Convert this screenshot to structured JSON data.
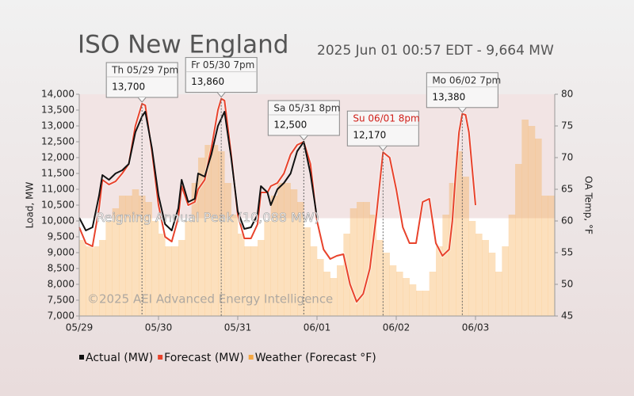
{
  "chart_data": {
    "type": "line",
    "title": "ISO New England",
    "subtitle": "2025 Jun 01 00:57 EDT - 9,664 MW",
    "y_label": "Load, MW",
    "y2_label": "OA Temp, °F",
    "watermark": "©2025 AEI Advanced Energy Intelligence",
    "xlim": [
      0,
      144
    ],
    "xticks": [
      {
        "value": 0,
        "label": "05/29"
      },
      {
        "value": 24,
        "label": "05/30"
      },
      {
        "value": 48,
        "label": "05/31"
      },
      {
        "value": 72,
        "label": "06/01"
      },
      {
        "value": 96,
        "label": "06/02"
      },
      {
        "value": 120,
        "label": "06/03"
      }
    ],
    "ylim": [
      7000,
      14000
    ],
    "yticks": [
      {
        "value": 7000,
        "label": "7,000"
      },
      {
        "value": 7500,
        "label": "7,500"
      },
      {
        "value": 8000,
        "label": "8,000"
      },
      {
        "value": 8500,
        "label": "8,500"
      },
      {
        "value": 9000,
        "label": "9,000"
      },
      {
        "value": 9500,
        "label": "9,500"
      },
      {
        "value": 10000,
        "label": "10,000"
      },
      {
        "value": 10500,
        "label": "10,500"
      },
      {
        "value": 11000,
        "label": "11,000"
      },
      {
        "value": 11500,
        "label": "11,500"
      },
      {
        "value": 12000,
        "label": "12,000"
      },
      {
        "value": 12500,
        "label": "12,500"
      },
      {
        "value": 13000,
        "label": "13,000"
      },
      {
        "value": 13500,
        "label": "13,500"
      },
      {
        "value": 14000,
        "label": "14,000"
      }
    ],
    "y2lim": [
      45,
      80
    ],
    "y2ticks": [
      45,
      50,
      55,
      60,
      65,
      70,
      75,
      80
    ],
    "annual_peak": {
      "value": 10088,
      "label": "Reigning Annual Peak (10,088 MW)"
    },
    "series": [
      {
        "name": "Actual (MW)",
        "color": "#111111",
        "x": [
          0,
          2,
          4,
          6,
          7,
          9,
          11,
          13,
          15,
          17,
          19,
          20,
          22,
          24,
          26,
          28,
          30,
          31,
          33,
          35,
          36,
          38,
          40,
          42,
          44,
          46,
          48,
          50,
          52,
          54,
          55,
          57,
          58,
          60,
          62,
          64,
          66,
          68,
          70,
          72
        ],
        "values": [
          10100,
          9700,
          9800,
          10800,
          11450,
          11300,
          11500,
          11600,
          11800,
          12800,
          13300,
          13450,
          12300,
          10800,
          9900,
          9700,
          10400,
          11300,
          10600,
          10700,
          11500,
          11400,
          12100,
          13000,
          13450,
          12000,
          10300,
          9750,
          9800,
          10200,
          11100,
          10900,
          10500,
          11000,
          11200,
          11500,
          12200,
          12500,
          11500,
          10100
        ]
      },
      {
        "name": "Forecast (MW)",
        "color": "#e8432c",
        "x": [
          0,
          2,
          4,
          6,
          7,
          9,
          11,
          13,
          15,
          17,
          19,
          20,
          22,
          24,
          26,
          28,
          30,
          31,
          33,
          35,
          36,
          38,
          40,
          42,
          43,
          44,
          46,
          48,
          50,
          52,
          54,
          55,
          57,
          58,
          60,
          62,
          64,
          66,
          68,
          70,
          72,
          74,
          76,
          78,
          80,
          82,
          84,
          86,
          88,
          90,
          92,
          94,
          96,
          98,
          100,
          102,
          104,
          106,
          108,
          110,
          112,
          113,
          114,
          115,
          116,
          117,
          118,
          120
        ],
        "values": [
          9800,
          9300,
          9200,
          10400,
          11300,
          11150,
          11250,
          11500,
          11800,
          13000,
          13700,
          13650,
          12200,
          10500,
          9500,
          9350,
          10100,
          11100,
          10500,
          10600,
          11000,
          11300,
          12300,
          13500,
          13860,
          13800,
          12100,
          10200,
          9450,
          9450,
          9900,
          10900,
          10900,
          11100,
          11200,
          11500,
          12100,
          12400,
          12500,
          11800,
          10000,
          9100,
          8800,
          8900,
          8950,
          8000,
          7450,
          7700,
          8500,
          10200,
          12170,
          12000,
          11000,
          9800,
          9300,
          9300,
          10600,
          10700,
          9300,
          8900,
          9100,
          10000,
          11500,
          12800,
          13380,
          13350,
          12800,
          10500
        ]
      },
      {
        "name": "Weather (Forecast °F)",
        "color": "#f5a742",
        "axis": "y2",
        "step": 2,
        "x": [
          0,
          2,
          4,
          6,
          8,
          10,
          12,
          14,
          16,
          18,
          20,
          22,
          24,
          26,
          28,
          30,
          32,
          34,
          36,
          38,
          40,
          42,
          44,
          46,
          48,
          50,
          52,
          54,
          56,
          58,
          60,
          62,
          64,
          66,
          68,
          70,
          72,
          74,
          76,
          78,
          80,
          82,
          84,
          86,
          88,
          90,
          92,
          94,
          96,
          98,
          100,
          102,
          104,
          106,
          108,
          110,
          112,
          114,
          116,
          118,
          120,
          122,
          124,
          126,
          128,
          130,
          132,
          134,
          136,
          138,
          140,
          142
        ],
        "values": [
          57,
          56,
          56,
          57,
          60,
          62,
          64,
          64,
          65,
          64,
          63,
          60,
          58,
          56,
          56,
          57,
          60,
          66,
          70,
          72,
          72,
          71,
          66,
          61,
          58,
          56,
          56,
          57,
          60,
          64,
          66,
          66,
          65,
          63,
          59,
          56,
          54,
          52,
          51,
          53,
          58,
          62,
          63,
          63,
          61,
          57,
          55,
          53,
          52,
          51,
          50,
          49,
          49,
          52,
          56,
          61,
          66,
          71,
          67,
          60,
          58,
          57,
          55,
          52,
          56,
          61,
          69,
          76,
          75,
          73,
          64,
          64
        ]
      }
    ],
    "annotations": [
      {
        "x": 19,
        "label": "Th 05/29 7pm",
        "value": 13700,
        "value_label": "13,700",
        "color": "#333333"
      },
      {
        "x": 43,
        "label": "Fr 05/30 7pm",
        "value": 13860,
        "value_label": "13,860",
        "color": "#333333"
      },
      {
        "x": 68,
        "label": "Sa 05/31 8pm",
        "value": 12500,
        "value_label": "12,500",
        "color": "#333333"
      },
      {
        "x": 92,
        "label": "Su 06/01 8pm",
        "value": 12170,
        "value_label": "12,170",
        "color": "#d0201a"
      },
      {
        "x": 116,
        "label": "Mo 06/02 7pm",
        "value": 13380,
        "value_label": "13,380",
        "color": "#333333"
      }
    ]
  }
}
